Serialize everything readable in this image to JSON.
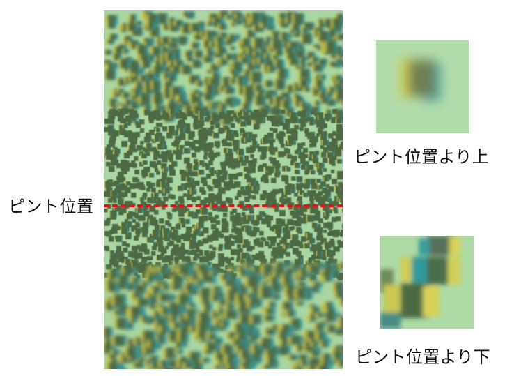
{
  "labels": {
    "focus_position": "ピント位置",
    "above_focus": "ピント位置より上",
    "below_focus": "ピント位置より下"
  },
  "colors": {
    "background_green": "#a9d6a2",
    "dot_dark": "#4e6a44",
    "fringe_yellow": "#c9c84a",
    "fringe_cyan": "#2f9a9a",
    "focus_line": "#e0141c"
  }
}
